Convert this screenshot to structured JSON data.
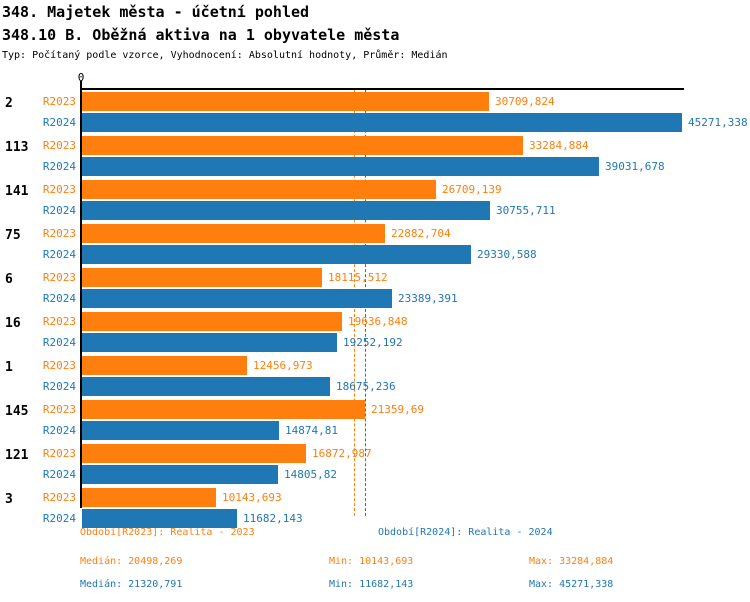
{
  "header": {
    "title": "348. Majetek města - účetní pohled",
    "subtitle": "348.10 B. Oběžná aktiva na 1 obyvatele města",
    "meta": "Typ: Počítaný podle vzorce, Vyhodnocení: Absolutní hodnoty, Průměr: Medián"
  },
  "colors": {
    "r2023": "#FF7F0E",
    "r2024": "#1F77B4",
    "axis": "#000000"
  },
  "chart_data": {
    "type": "bar",
    "orientation": "horizontal",
    "title": "348.10 B. Oběžná aktiva na 1 obyvatele města",
    "x_axis": {
      "min": 0,
      "max": 45271.338,
      "origin_tick_label": "0",
      "grid": false
    },
    "series_names": [
      "R2023",
      "R2024"
    ],
    "categories": [
      "2",
      "113",
      "141",
      "75",
      "6",
      "16",
      "1",
      "145",
      "121",
      "3"
    ],
    "groups": [
      {
        "category": "2",
        "values": {
          "r2023": 30709.824,
          "r2024": 45271.338
        },
        "labels": {
          "r2023": "30709,824",
          "r2024": "45271,338"
        }
      },
      {
        "category": "113",
        "values": {
          "r2023": 33284.884,
          "r2024": 39031.678
        },
        "labels": {
          "r2023": "33284,884",
          "r2024": "39031,678"
        }
      },
      {
        "category": "141",
        "values": {
          "r2023": 26709.139,
          "r2024": 30755.711
        },
        "labels": {
          "r2023": "26709,139",
          "r2024": "30755,711"
        }
      },
      {
        "category": "75",
        "values": {
          "r2023": 22882.704,
          "r2024": 29330.588
        },
        "labels": {
          "r2023": "22882,704",
          "r2024": "29330,588"
        }
      },
      {
        "category": "6",
        "values": {
          "r2023": 18115.512,
          "r2024": 23389.391
        },
        "labels": {
          "r2023": "18115,512",
          "r2024": "23389,391"
        }
      },
      {
        "category": "16",
        "values": {
          "r2023": 19636.848,
          "r2024": 19252.192
        },
        "labels": {
          "r2023": "19636,848",
          "r2024": "19252,192"
        }
      },
      {
        "category": "1",
        "values": {
          "r2023": 12456.973,
          "r2024": 18675.236
        },
        "labels": {
          "r2023": "12456,973",
          "r2024": "18675,236"
        }
      },
      {
        "category": "145",
        "values": {
          "r2023": 21359.69,
          "r2024": 14874.81
        },
        "labels": {
          "r2023": "21359,69",
          "r2024": "14874,81"
        }
      },
      {
        "category": "121",
        "values": {
          "r2023": 16872.987,
          "r2024": 14805.82
        },
        "labels": {
          "r2023": "16872,987",
          "r2024": "14805,82"
        }
      },
      {
        "category": "3",
        "values": {
          "r2023": 10143.693,
          "r2024": 11682.143
        },
        "labels": {
          "r2023": "10143,693",
          "r2024": "11682,143"
        }
      }
    ],
    "reference_lines": [
      {
        "name": "median-r2023",
        "value": 20498.269,
        "color": "#FF7F0E"
      },
      {
        "name": "median-r2024",
        "value": 21320.791,
        "color": "#1F77B4"
      }
    ],
    "legend_position": "bottom"
  },
  "footer": {
    "legend": [
      {
        "series": "r2023",
        "label": "Období[R2023]: Realita - 2023"
      },
      {
        "series": "r2024",
        "label": "Období[R2024]: Realita - 2024"
      }
    ],
    "stats": [
      {
        "series": "r2023",
        "median": "Medián: 20498,269",
        "min": "Min: 10143,693",
        "max": "Max: 33284,884"
      },
      {
        "series": "r2024",
        "median": "Medián: 21320,791",
        "min": "Min: 11682,143",
        "max": "Max: 45271,338"
      }
    ]
  }
}
